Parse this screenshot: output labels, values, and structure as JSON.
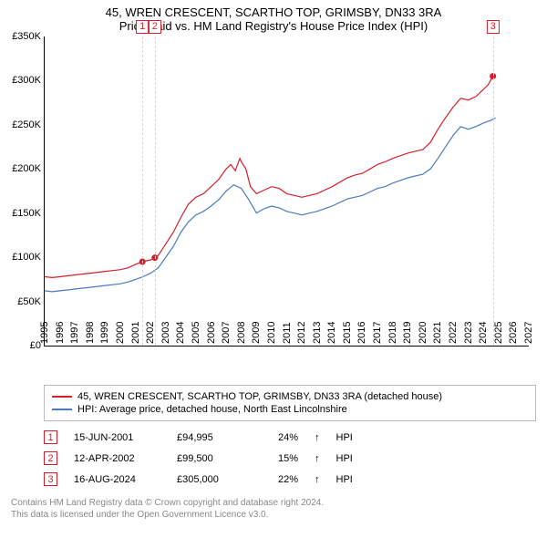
{
  "title_line1": "45, WREN CRESCENT, SCARTHO TOP, GRIMSBY, DN33 3RA",
  "title_line2": "Price paid vs. HM Land Registry's House Price Index (HPI)",
  "chart": {
    "type": "line",
    "ylim": [
      0,
      350000
    ],
    "ytick_step": 50000,
    "yticks": [
      "£0",
      "£50K",
      "£100K",
      "£150K",
      "£200K",
      "£250K",
      "£300K",
      "£350K"
    ],
    "xlim": [
      1995,
      2027
    ],
    "xticks": [
      1995,
      1996,
      1997,
      1998,
      1999,
      2000,
      2001,
      2002,
      2003,
      2004,
      2005,
      2006,
      2007,
      2008,
      2009,
      2010,
      2011,
      2012,
      2013,
      2014,
      2015,
      2016,
      2017,
      2018,
      2019,
      2020,
      2021,
      2022,
      2023,
      2024,
      2025,
      2026,
      2027
    ],
    "grid": false,
    "background_color": "#ffffff",
    "axis_color": "#000000",
    "series": [
      {
        "name": "45, WREN CRESCENT, SCARTHO TOP, GRIMSBY, DN33 3RA (detached house)",
        "color": "#d81e2c",
        "line_width": 1.2,
        "points": [
          [
            1995.0,
            78000
          ],
          [
            1995.5,
            77000
          ],
          [
            1996.0,
            78000
          ],
          [
            1996.5,
            79000
          ],
          [
            1997.0,
            80000
          ],
          [
            1997.5,
            81000
          ],
          [
            1998.0,
            82000
          ],
          [
            1998.5,
            83000
          ],
          [
            1999.0,
            84000
          ],
          [
            1999.5,
            85000
          ],
          [
            2000.0,
            86000
          ],
          [
            2000.5,
            88000
          ],
          [
            2001.0,
            92000
          ],
          [
            2001.46,
            94995
          ],
          [
            2002.0,
            97000
          ],
          [
            2002.28,
            99500
          ],
          [
            2002.5,
            102000
          ],
          [
            2003.0,
            115000
          ],
          [
            2003.5,
            128000
          ],
          [
            2004.0,
            145000
          ],
          [
            2004.5,
            160000
          ],
          [
            2005.0,
            168000
          ],
          [
            2005.5,
            172000
          ],
          [
            2006.0,
            180000
          ],
          [
            2006.5,
            188000
          ],
          [
            2007.0,
            200000
          ],
          [
            2007.3,
            205000
          ],
          [
            2007.6,
            198000
          ],
          [
            2007.9,
            212000
          ],
          [
            2008.0,
            208000
          ],
          [
            2008.3,
            200000
          ],
          [
            2008.6,
            180000
          ],
          [
            2009.0,
            172000
          ],
          [
            2009.5,
            176000
          ],
          [
            2010.0,
            180000
          ],
          [
            2010.5,
            178000
          ],
          [
            2011.0,
            172000
          ],
          [
            2011.5,
            170000
          ],
          [
            2012.0,
            168000
          ],
          [
            2012.5,
            170000
          ],
          [
            2013.0,
            172000
          ],
          [
            2013.5,
            176000
          ],
          [
            2014.0,
            180000
          ],
          [
            2014.5,
            185000
          ],
          [
            2015.0,
            190000
          ],
          [
            2015.5,
            193000
          ],
          [
            2016.0,
            195000
          ],
          [
            2016.5,
            200000
          ],
          [
            2017.0,
            205000
          ],
          [
            2017.5,
            208000
          ],
          [
            2018.0,
            212000
          ],
          [
            2018.5,
            215000
          ],
          [
            2019.0,
            218000
          ],
          [
            2019.5,
            220000
          ],
          [
            2020.0,
            222000
          ],
          [
            2020.5,
            230000
          ],
          [
            2021.0,
            245000
          ],
          [
            2021.5,
            258000
          ],
          [
            2022.0,
            270000
          ],
          [
            2022.5,
            280000
          ],
          [
            2023.0,
            278000
          ],
          [
            2023.5,
            282000
          ],
          [
            2024.0,
            290000
          ],
          [
            2024.3,
            295000
          ],
          [
            2024.63,
            305000
          ]
        ]
      },
      {
        "name": "HPI: Average price, detached house, North East Lincolnshire",
        "color": "#4a7bbf",
        "line_width": 1.2,
        "points": [
          [
            1995.0,
            62000
          ],
          [
            1995.5,
            61000
          ],
          [
            1996.0,
            62000
          ],
          [
            1996.5,
            63000
          ],
          [
            1997.0,
            64000
          ],
          [
            1997.5,
            65000
          ],
          [
            1998.0,
            66000
          ],
          [
            1998.5,
            67000
          ],
          [
            1999.0,
            68000
          ],
          [
            1999.5,
            69000
          ],
          [
            2000.0,
            70000
          ],
          [
            2000.5,
            72000
          ],
          [
            2001.0,
            75000
          ],
          [
            2001.5,
            78000
          ],
          [
            2002.0,
            82000
          ],
          [
            2002.5,
            88000
          ],
          [
            2003.0,
            100000
          ],
          [
            2003.5,
            112000
          ],
          [
            2004.0,
            128000
          ],
          [
            2004.5,
            140000
          ],
          [
            2005.0,
            148000
          ],
          [
            2005.5,
            152000
          ],
          [
            2006.0,
            158000
          ],
          [
            2006.5,
            165000
          ],
          [
            2007.0,
            175000
          ],
          [
            2007.5,
            182000
          ],
          [
            2008.0,
            178000
          ],
          [
            2008.5,
            165000
          ],
          [
            2009.0,
            150000
          ],
          [
            2009.5,
            155000
          ],
          [
            2010.0,
            158000
          ],
          [
            2010.5,
            156000
          ],
          [
            2011.0,
            152000
          ],
          [
            2011.5,
            150000
          ],
          [
            2012.0,
            148000
          ],
          [
            2012.5,
            150000
          ],
          [
            2013.0,
            152000
          ],
          [
            2013.5,
            155000
          ],
          [
            2014.0,
            158000
          ],
          [
            2014.5,
            162000
          ],
          [
            2015.0,
            166000
          ],
          [
            2015.5,
            168000
          ],
          [
            2016.0,
            170000
          ],
          [
            2016.5,
            174000
          ],
          [
            2017.0,
            178000
          ],
          [
            2017.5,
            180000
          ],
          [
            2018.0,
            184000
          ],
          [
            2018.5,
            187000
          ],
          [
            2019.0,
            190000
          ],
          [
            2019.5,
            192000
          ],
          [
            2020.0,
            194000
          ],
          [
            2020.5,
            200000
          ],
          [
            2021.0,
            212000
          ],
          [
            2021.5,
            225000
          ],
          [
            2022.0,
            238000
          ],
          [
            2022.5,
            248000
          ],
          [
            2023.0,
            245000
          ],
          [
            2023.5,
            248000
          ],
          [
            2024.0,
            252000
          ],
          [
            2024.5,
            255000
          ],
          [
            2024.8,
            258000
          ]
        ]
      }
    ],
    "markers": [
      {
        "n": "1",
        "x": 2001.46,
        "y": 94995,
        "hasDot": true,
        "labelTop": true
      },
      {
        "n": "2",
        "x": 2002.28,
        "y": 99500,
        "hasDot": true,
        "labelTop": true
      },
      {
        "n": "3",
        "x": 2024.63,
        "y": 305000,
        "hasDot": true,
        "labelTop": true
      }
    ],
    "marker_color": "#d81e2c",
    "marker_dot_radius": 3.5
  },
  "legend": {
    "rows": [
      {
        "color": "#d81e2c",
        "label": "45, WREN CRESCENT, SCARTHO TOP, GRIMSBY, DN33 3RA (detached house)"
      },
      {
        "color": "#4a7bbf",
        "label": "HPI: Average price, detached house, North East Lincolnshire"
      }
    ]
  },
  "transactions": [
    {
      "n": "1",
      "date": "15-JUN-2001",
      "price": "£94,995",
      "pct": "24%",
      "arrow": "↑",
      "compare": "HPI"
    },
    {
      "n": "2",
      "date": "12-APR-2002",
      "price": "£99,500",
      "pct": "15%",
      "arrow": "↑",
      "compare": "HPI"
    },
    {
      "n": "3",
      "date": "16-AUG-2024",
      "price": "£305,000",
      "pct": "22%",
      "arrow": "↑",
      "compare": "HPI"
    }
  ],
  "footer_line1": "Contains HM Land Registry data © Crown copyright and database right 2024.",
  "footer_line2": "This data is licensed under the Open Government Licence v3.0.",
  "colors": {
    "primary": "#d81e2c",
    "secondary": "#4a7bbf",
    "text": "#000000",
    "footer": "#888888"
  }
}
